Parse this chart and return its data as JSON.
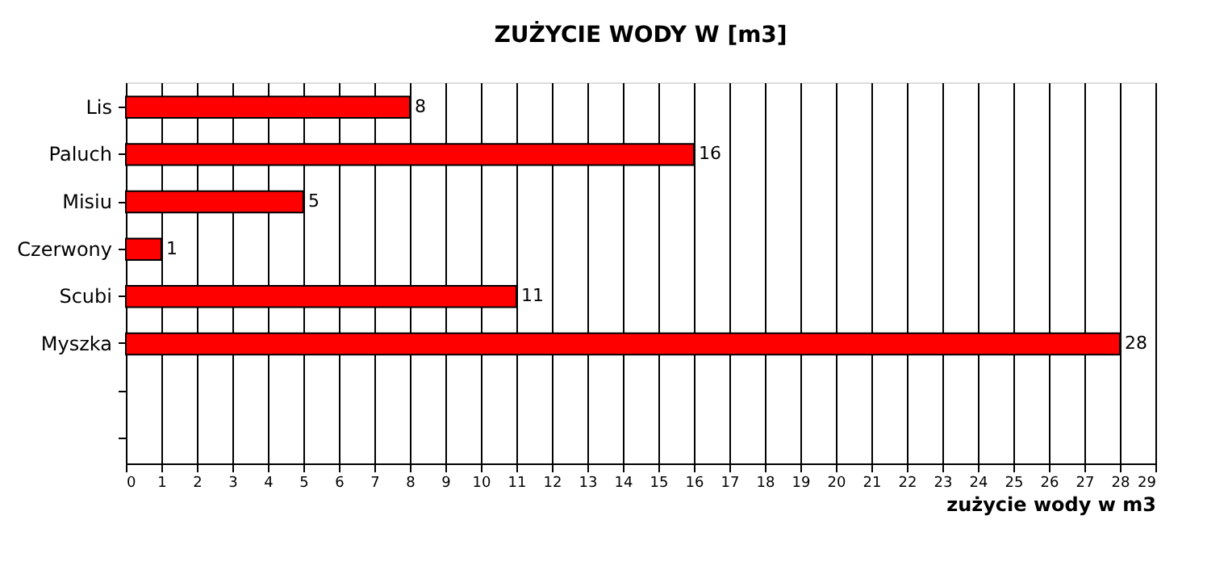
{
  "chart_data": {
    "type": "bar",
    "orientation": "horizontal",
    "title": "ZUŻYCIE WODY W [m3]",
    "xlabel": "zużycie wody w m3",
    "categories": [
      "Lis",
      "Paluch",
      "Misiu",
      "Czerwony",
      "Scubi",
      "Myszka",
      null,
      null
    ],
    "values": [
      8,
      16,
      5,
      1,
      11,
      28,
      null,
      null
    ],
    "color": "#ff0000",
    "xlim": [
      0,
      29
    ],
    "xticks": [
      0,
      1,
      2,
      3,
      4,
      5,
      6,
      7,
      8,
      9,
      10,
      11,
      12,
      13,
      14,
      15,
      16,
      17,
      18,
      19,
      20,
      21,
      22,
      23,
      24,
      25,
      26,
      27,
      28,
      29
    ],
    "grid": "x",
    "data_labels": true
  }
}
